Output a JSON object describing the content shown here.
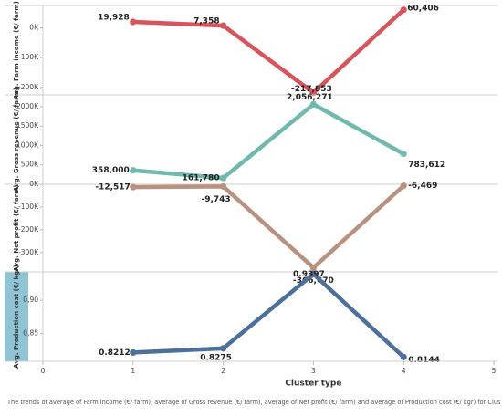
{
  "caption": "The trends of average of Farm income (€/ farm), average of Gross revenue (€/ farm), average of Net profit (€/ farm) and average of Production cost (€/ kgr) for Cluster type.",
  "chart_data": {
    "type": "line",
    "xlabel": "Cluster type",
    "xlim": [
      0,
      5
    ],
    "xticks": [
      "0",
      "1",
      "2",
      "3",
      "4",
      "5"
    ],
    "x": [
      1,
      2,
      3,
      4
    ],
    "grid": false,
    "panels": [
      {
        "ylabel": "Avg. Farm income (€/ farm)",
        "color": "#d9535b",
        "ylim": [
          -225000,
          75000
        ],
        "yticks": [
          {
            "v": 0,
            "label": "0K"
          },
          {
            "v": -100000,
            "label": "-100K"
          },
          {
            "v": -200000,
            "label": "-200K"
          }
        ],
        "values": [
          19928,
          7358,
          -217853,
          60406
        ],
        "labels": [
          "19,928",
          "7,358",
          "-217,853",
          "60,406"
        ],
        "highlight_label": false
      },
      {
        "ylabel": "Avg. Gross revenue (€/ farm)",
        "color": "#6fb9ad",
        "ylim": [
          0,
          2300000
        ],
        "yticks": [
          {
            "v": 2000000,
            "label": "2000K"
          },
          {
            "v": 1500000,
            "label": "1500K"
          },
          {
            "v": 1000000,
            "label": "1000K"
          },
          {
            "v": 500000,
            "label": "500K"
          }
        ],
        "values": [
          358000,
          161780,
          2056271,
          783612
        ],
        "labels": [
          "358,000",
          "161,780",
          "2,056,271",
          "783,612"
        ],
        "highlight_label": false
      },
      {
        "ylabel": "Avg. Net profit (€/ farm)",
        "color": "#b8927f",
        "ylim": [
          -385000,
          0
        ],
        "yticks": [
          {
            "v": 0,
            "label": "0K"
          },
          {
            "v": -100000,
            "label": "-100K"
          },
          {
            "v": -200000,
            "label": "-200K"
          },
          {
            "v": -300000,
            "label": "-300K"
          }
        ],
        "values": [
          -12517,
          -9743,
          -366670,
          -6469
        ],
        "labels": [
          "-12,517",
          "-9,743",
          "-366,670",
          "-6,469"
        ],
        "highlight_label": false
      },
      {
        "ylabel": "Avg. Production cost (€/ kgr)",
        "color": "#4b709c",
        "ylim": [
          0.808,
          0.943
        ],
        "yticks": [
          {
            "v": 0.9,
            "label": "0,90"
          },
          {
            "v": 0.85,
            "label": "0,85"
          }
        ],
        "values": [
          0.8212,
          0.8275,
          0.9397,
          0.8144
        ],
        "labels": [
          "0.8212",
          "0.8275",
          "0.9397",
          "0.8144"
        ],
        "highlight_label": true,
        "label_bg": "#8ec4d3"
      }
    ]
  }
}
